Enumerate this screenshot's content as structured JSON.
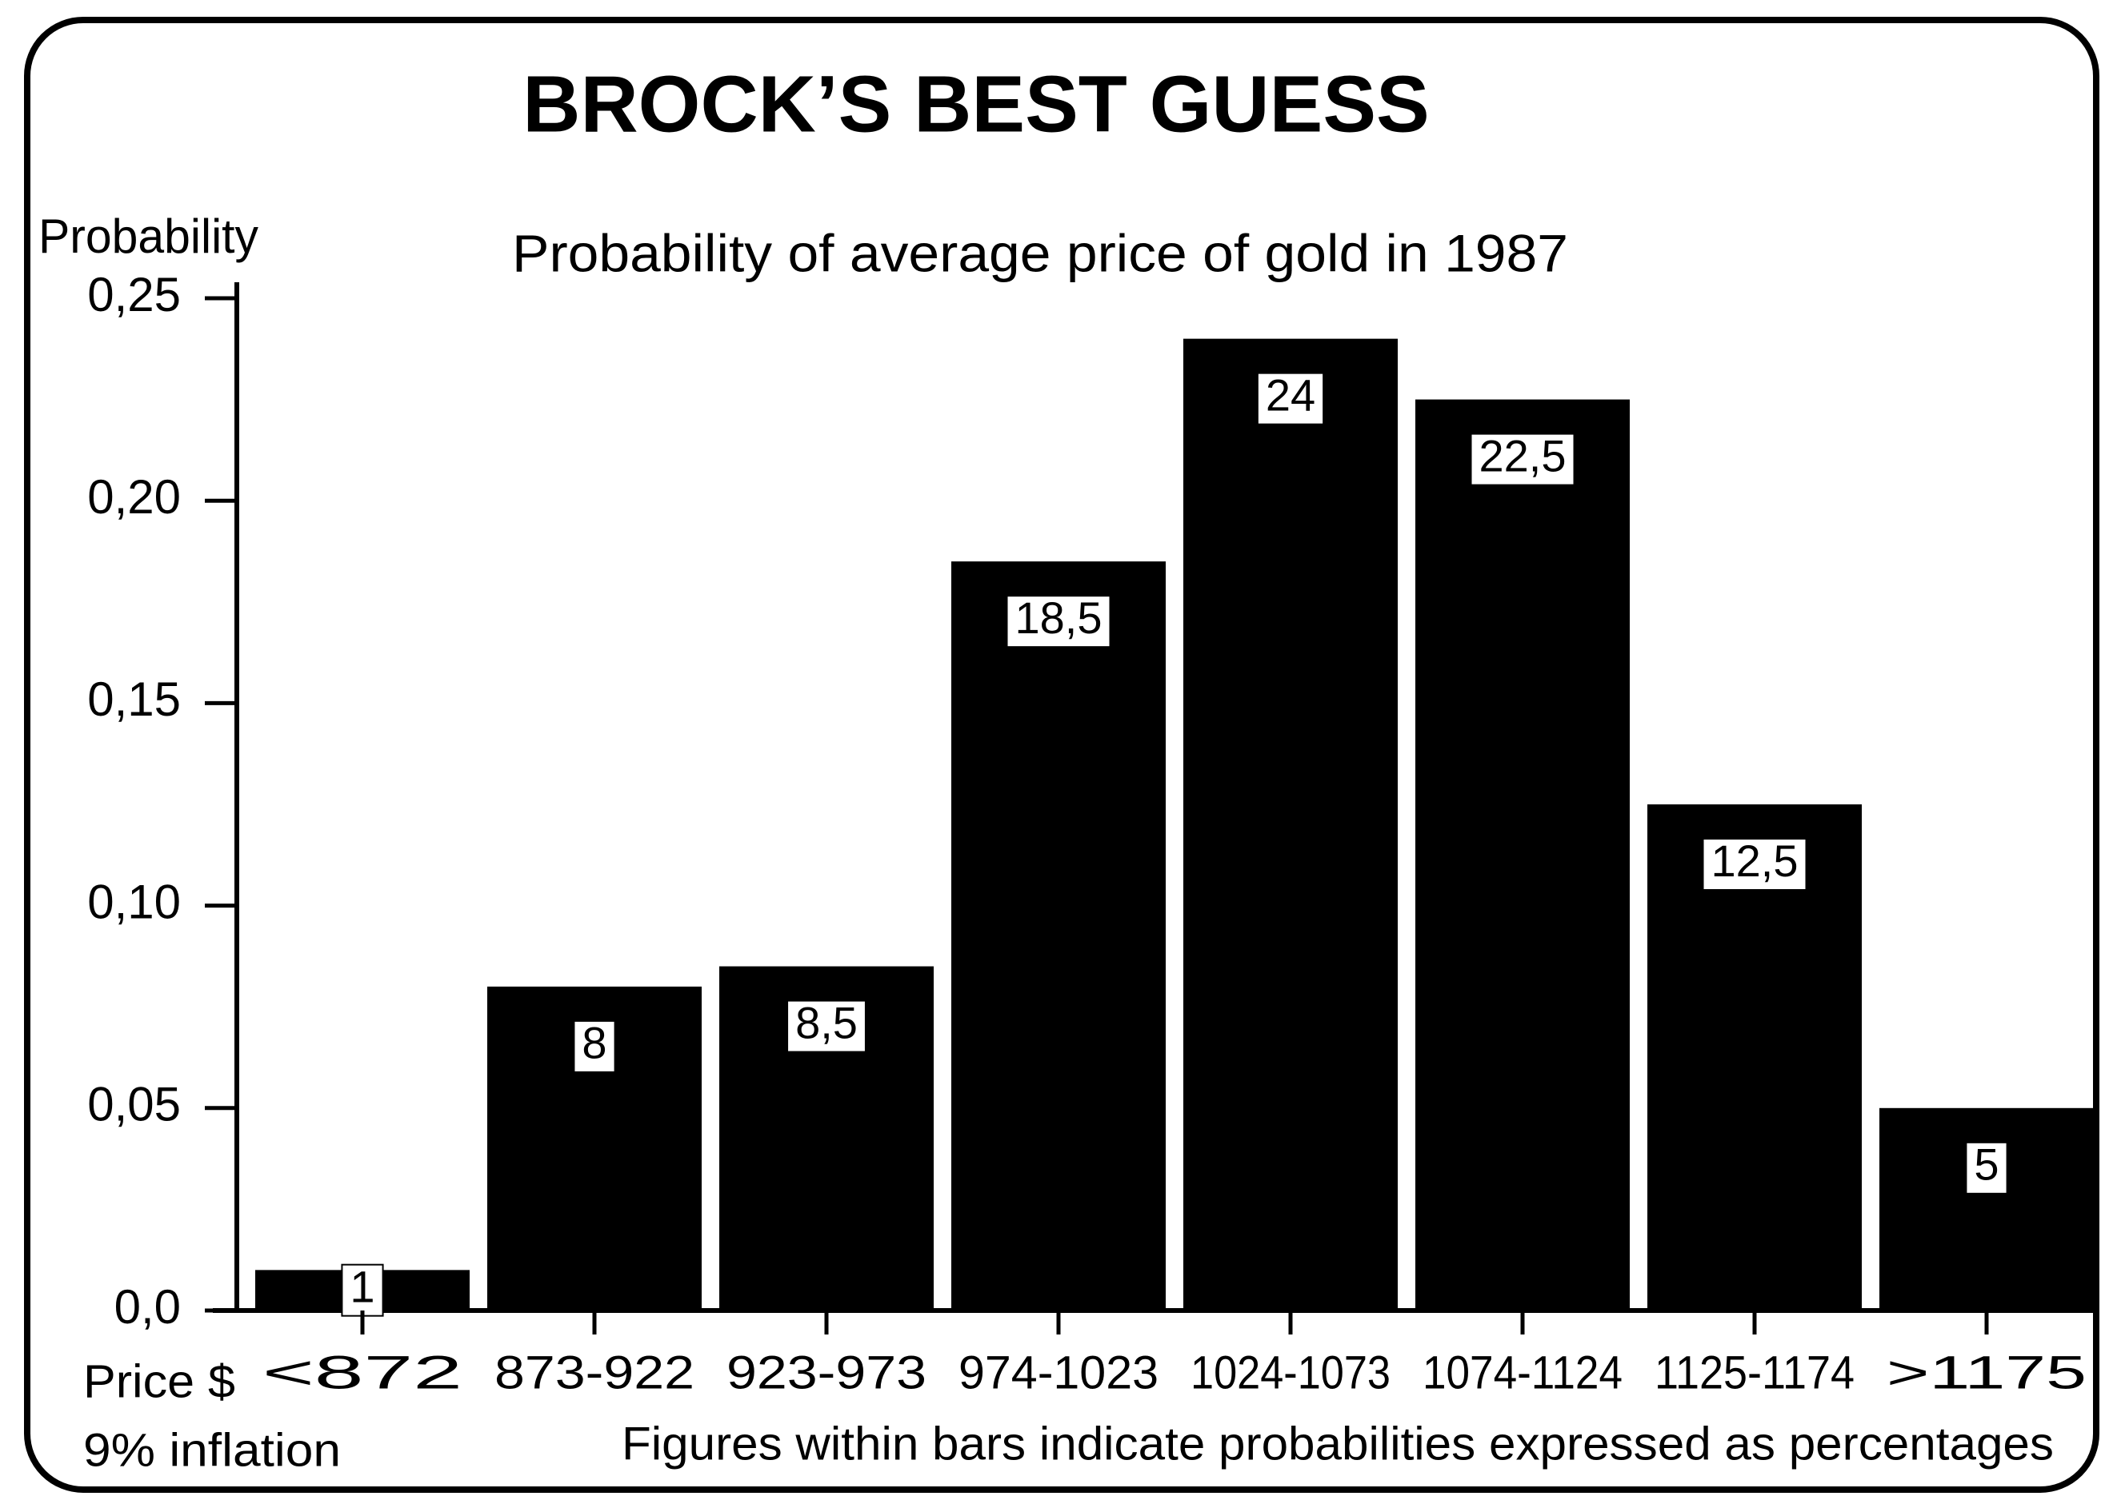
{
  "chart_data": {
    "type": "bar",
    "title": "BROCK’S BEST GUESS",
    "subtitle": "Probability of average price of gold in 1987",
    "y_label": "Probability",
    "x_label": "Price $",
    "x_sublabel": "9% inflation",
    "note": "Figures within bars indicate probabilities expressed as percentages",
    "categories": [
      "<872",
      "873-922",
      "923-973",
      "974-1023",
      "1024-1073",
      "1074-1124",
      "1125-1174",
      ">1175"
    ],
    "values": [
      0.01,
      0.08,
      0.085,
      0.185,
      0.24,
      0.225,
      0.125,
      0.05
    ],
    "value_labels": [
      "1",
      "8",
      "8,5",
      "18,5",
      "24",
      "22,5",
      "12,5",
      "5"
    ],
    "color": "#000000",
    "ylim": [
      0,
      0.25
    ],
    "yticks": [
      {
        "value": 0,
        "label": "0,0"
      },
      {
        "value": 0.05,
        "label": "0,05"
      },
      {
        "value": 0.1,
        "label": "0,10"
      },
      {
        "value": 0.15,
        "label": "0,15"
      },
      {
        "value": 0.2,
        "label": "0,20"
      },
      {
        "value": 0.25,
        "label": "0,25"
      }
    ]
  }
}
